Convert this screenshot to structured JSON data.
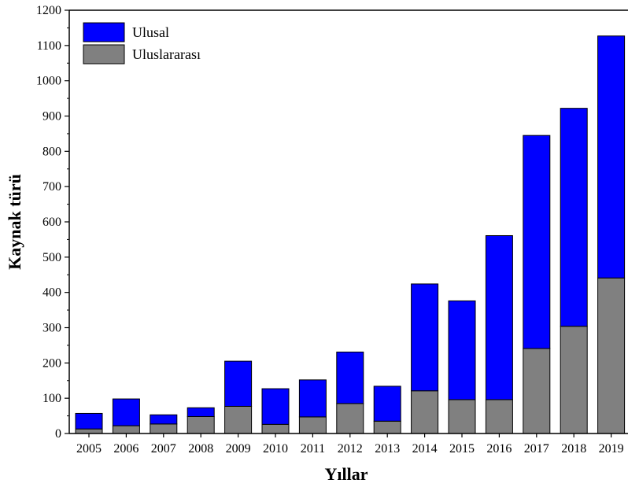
{
  "chart_data": {
    "type": "bar",
    "stacked": true,
    "categories": [
      "2005",
      "2006",
      "2007",
      "2008",
      "2009",
      "2010",
      "2011",
      "2012",
      "2013",
      "2014",
      "2015",
      "2016",
      "2017",
      "2018",
      "2019"
    ],
    "series": [
      {
        "name": "Uluslararası",
        "color": "#808080",
        "values": [
          13,
          22,
          27,
          48,
          77,
          26,
          47,
          85,
          35,
          121,
          96,
          96,
          241,
          304,
          441
        ]
      },
      {
        "name": "Ulusal",
        "color": "#0000ff",
        "values": [
          44,
          76,
          26,
          25,
          128,
          101,
          105,
          146,
          99,
          303,
          280,
          465,
          604,
          618,
          686
        ]
      }
    ],
    "legend": [
      {
        "name": "Ulusal",
        "color": "#0000ff"
      },
      {
        "name": "Uluslararası",
        "color": "#808080"
      }
    ],
    "legend_position": "top-left",
    "xlabel": "Yıllar",
    "ylabel": "Kaynak türü",
    "ylim": [
      0,
      1200
    ],
    "yticks": [
      0,
      100,
      200,
      300,
      400,
      500,
      600,
      700,
      800,
      900,
      1000,
      1100,
      1200
    ],
    "grid": false
  }
}
